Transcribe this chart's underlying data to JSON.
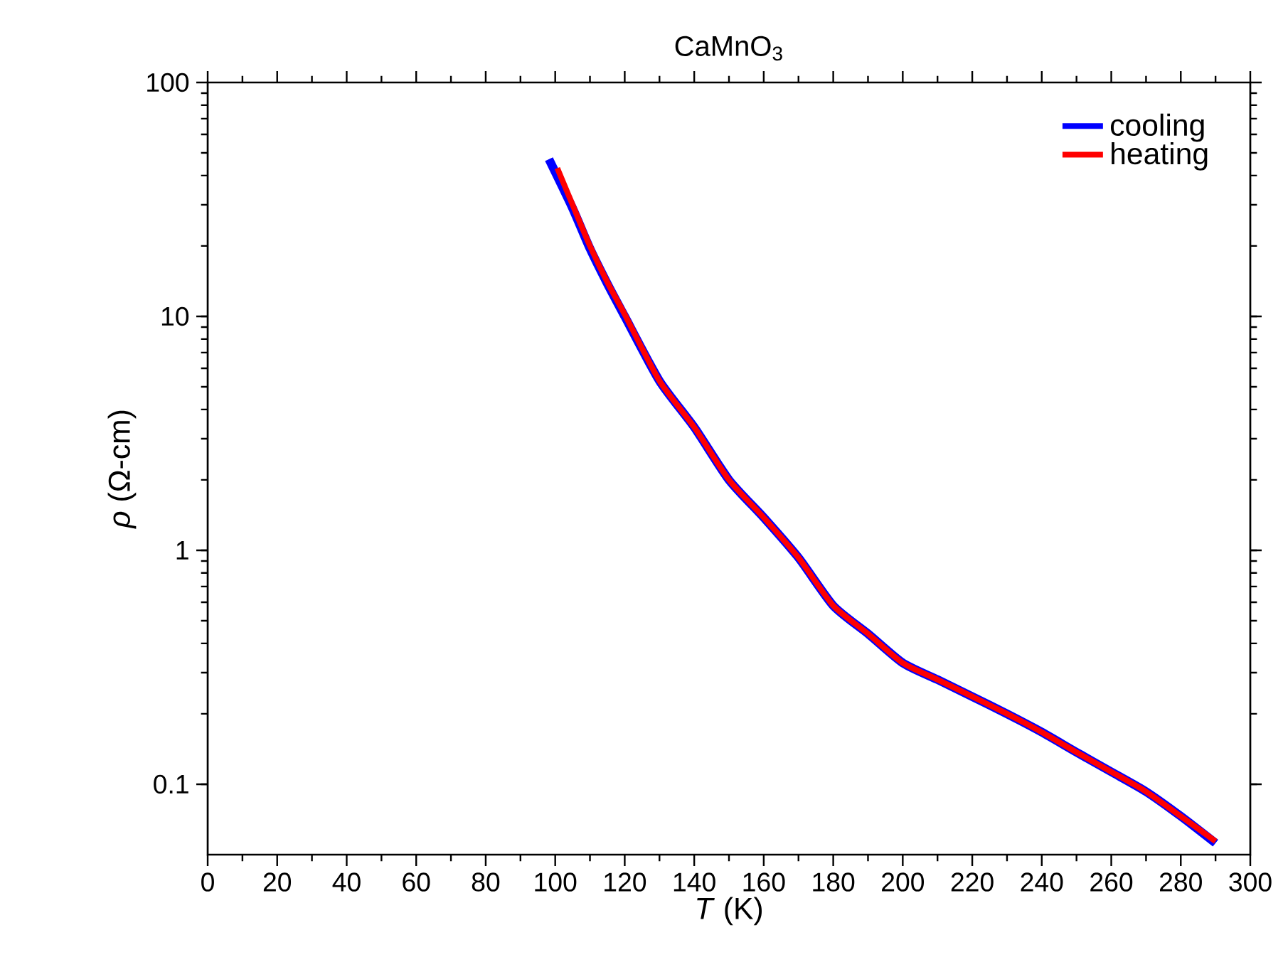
{
  "chart_data": {
    "type": "line",
    "title": "CaMnO$_{3}$",
    "xlabel": "*T* (K)",
    "ylabel": "*ρ* (Ω-cm)",
    "log": "y",
    "xlim": [
      0,
      300
    ],
    "ylim": [
      0.05,
      100
    ],
    "xticks": [
      0,
      20,
      40,
      60,
      80,
      100,
      120,
      140,
      160,
      180,
      200,
      220,
      240,
      260,
      280,
      300
    ],
    "yticks": [
      0.1,
      1,
      10,
      100
    ],
    "grid": false,
    "legend": "top right",
    "marker": "none",
    "line_style": "solid",
    "series": [
      {
        "name": "cooling",
        "color": "#0000ff",
        "x": [
          98.2,
          105,
          110,
          115,
          120,
          130,
          140,
          150,
          160,
          170,
          180,
          190,
          200,
          210,
          220,
          230,
          240,
          250,
          260,
          270,
          280,
          290
        ],
        "values": [
          47,
          29,
          19.5,
          13.8,
          10,
          5.3,
          3.36,
          2.0,
          1.38,
          0.93,
          0.58,
          0.44,
          0.33,
          0.28,
          0.237,
          0.2,
          0.167,
          0.137,
          0.113,
          0.093,
          0.073,
          0.056
        ]
      },
      {
        "name": "heating",
        "color": "#ff0000",
        "x": [
          100.6,
          105,
          110,
          115,
          120,
          130,
          140,
          150,
          160,
          170,
          180,
          190,
          200,
          210,
          220,
          230,
          240,
          250,
          260,
          270,
          280,
          290
        ],
        "values": [
          43,
          30,
          20,
          14,
          10.2,
          5.3,
          3.36,
          2.0,
          1.38,
          0.93,
          0.58,
          0.44,
          0.33,
          0.28,
          0.237,
          0.2,
          0.167,
          0.137,
          0.113,
          0.093,
          0.073,
          0.057
        ]
      }
    ]
  }
}
